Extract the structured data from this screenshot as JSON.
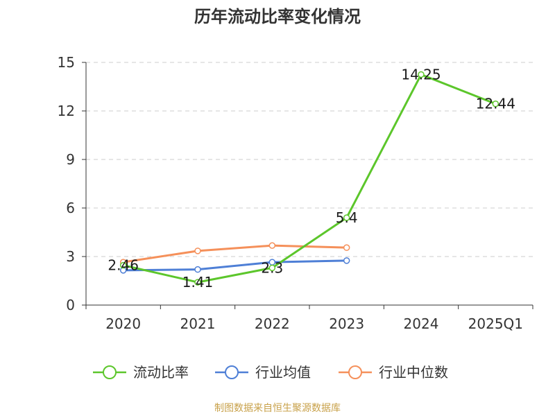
{
  "chart_data": {
    "type": "line",
    "title": "历年流动比率变化情况",
    "categories": [
      "2020",
      "2021",
      "2022",
      "2023",
      "2024",
      "2025Q1"
    ],
    "ylim": [
      0,
      15
    ],
    "yticks": [
      "0",
      "3",
      "6",
      "9",
      "12",
      "15"
    ],
    "grid": "horizontal dashed",
    "legend_position": "bottom",
    "series": [
      {
        "name": "流动比率",
        "color": "#5cc62b",
        "values": [
          2.46,
          1.41,
          2.3,
          5.4,
          14.25,
          12.44
        ],
        "labels": [
          "2.46",
          "1.41",
          "2.3",
          "5.4",
          "14.25",
          "12.44"
        ]
      },
      {
        "name": "行业均值",
        "color": "#4e7fd6",
        "values": [
          2.15,
          2.2,
          2.65,
          2.75,
          null,
          null
        ]
      },
      {
        "name": "行业中位数",
        "color": "#f5905a",
        "values": [
          2.65,
          3.35,
          3.68,
          3.55,
          null,
          null
        ]
      }
    ],
    "source": "制图数据来自恒生聚源数据库"
  }
}
